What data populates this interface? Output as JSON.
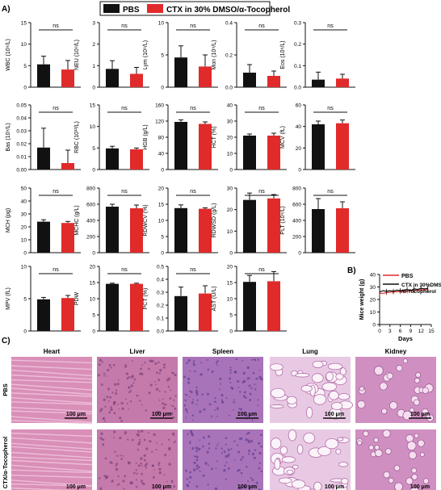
{
  "panels": {
    "a": "A)",
    "b": "B)",
    "c": "C)"
  },
  "legend": {
    "series": [
      "PBS",
      "CTX in 30% DMSO/α-Tocopherol"
    ],
    "colors": [
      "#111111",
      "#e12a2a"
    ]
  },
  "significance": "ns",
  "chart_data": [
    {
      "type": "bar",
      "ylabel": "WBC (10⁹/L)",
      "ylim": [
        0,
        15
      ],
      "ticks": [
        "0",
        "5",
        "10",
        "15"
      ],
      "values": [
        5.3,
        4.1
      ],
      "errors": [
        1.9,
        2.1
      ]
    },
    {
      "type": "bar",
      "ylabel": "NEU (10⁹/L)",
      "ylim": [
        0,
        3
      ],
      "ticks": [
        "0",
        "1",
        "2",
        "3"
      ],
      "values": [
        0.85,
        0.62
      ],
      "errors": [
        0.38,
        0.3
      ]
    },
    {
      "type": "bar",
      "ylabel": "Lym (10⁹/L)",
      "ylim": [
        0,
        10
      ],
      "ticks": [
        "0",
        "5",
        "10"
      ],
      "values": [
        4.6,
        3.2
      ],
      "errors": [
        1.8,
        1.8
      ]
    },
    {
      "type": "bar",
      "ylabel": "Mon (10⁹/L)",
      "ylim": [
        0,
        0.4
      ],
      "ticks": [
        "0.0",
        "0.2",
        "0.4"
      ],
      "values": [
        0.09,
        0.07
      ],
      "errors": [
        0.05,
        0.03
      ]
    },
    {
      "type": "bar",
      "ylabel": "Eos (10⁹/L)",
      "ylim": [
        0,
        0.3
      ],
      "ticks": [
        "0.0",
        "0.1",
        "0.2",
        "0.3"
      ],
      "values": [
        0.035,
        0.04
      ],
      "errors": [
        0.035,
        0.02
      ]
    },
    {
      "type": "bar",
      "ylabel": "Bas (10⁹/L)",
      "ylim": [
        0,
        0.05
      ],
      "ticks": [
        "0.00",
        "0.01",
        "0.02",
        "0.03",
        "0.04",
        "0.05"
      ],
      "values": [
        0.017,
        0.005
      ],
      "errors": [
        0.015,
        0.01
      ]
    },
    {
      "type": "bar",
      "ylabel": "RBC (10¹²/L)",
      "ylim": [
        0,
        15
      ],
      "ticks": [
        "0",
        "5",
        "10",
        "15"
      ],
      "values": [
        4.9,
        4.7
      ],
      "errors": [
        0.5,
        0.3
      ]
    },
    {
      "type": "bar",
      "ylabel": "HGB (g/L)",
      "ylim": [
        0,
        160
      ],
      "ticks": [
        "0",
        "40",
        "80",
        "120",
        "160"
      ],
      "values": [
        118,
        113
      ],
      "errors": [
        5,
        5
      ]
    },
    {
      "type": "bar",
      "ylabel": "HCT (%)",
      "ylim": [
        0,
        40
      ],
      "ticks": [
        "0",
        "10",
        "20",
        "30",
        "40"
      ],
      "values": [
        21,
        21
      ],
      "errors": [
        1,
        1.5
      ]
    },
    {
      "type": "bar",
      "ylabel": "MCV (fL)",
      "ylim": [
        0,
        60
      ],
      "ticks": [
        "0",
        "20",
        "40",
        "60"
      ],
      "values": [
        42,
        43
      ],
      "errors": [
        3,
        3
      ]
    },
    {
      "type": "bar",
      "ylabel": "MCH (pg)",
      "ylim": [
        0,
        50
      ],
      "ticks": [
        "0",
        "10",
        "20",
        "30",
        "40",
        "50"
      ],
      "values": [
        24,
        23
      ],
      "errors": [
        1.5,
        1.2
      ]
    },
    {
      "type": "bar",
      "ylabel": "MCHC (g/L)",
      "ylim": [
        0,
        800
      ],
      "ticks": [
        "0",
        "200",
        "400",
        "600",
        "800"
      ],
      "values": [
        570,
        550
      ],
      "errors": [
        30,
        40
      ]
    },
    {
      "type": "bar",
      "ylabel": "RDWCV (%)",
      "ylim": [
        0,
        20
      ],
      "ticks": [
        "0",
        "5",
        "10",
        "15",
        "20"
      ],
      "values": [
        13.8,
        13.6
      ],
      "errors": [
        1,
        0.3
      ]
    },
    {
      "type": "bar",
      "ylabel": "RDWSD (g/L)",
      "ylim": [
        0,
        30
      ],
      "ticks": [
        "0",
        "10",
        "20",
        "30"
      ],
      "values": [
        24.5,
        25.2
      ],
      "errors": [
        3.2,
        1.8
      ]
    },
    {
      "type": "bar",
      "ylabel": "PLT (10⁹/L)",
      "ylim": [
        0,
        800
      ],
      "ticks": [
        "0",
        "200",
        "400",
        "600",
        "800"
      ],
      "values": [
        540,
        550
      ],
      "errors": [
        130,
        80
      ]
    },
    {
      "type": "bar",
      "ylabel": "MPV (fL)",
      "ylim": [
        0,
        10
      ],
      "ticks": [
        "0",
        "5",
        "10"
      ],
      "values": [
        4.9,
        5.1
      ],
      "errors": [
        0.3,
        0.4
      ]
    },
    {
      "type": "bar",
      "ylabel": "PDW",
      "ylim": [
        0,
        20
      ],
      "ticks": [
        "0",
        "5",
        "10",
        "15",
        "20"
      ],
      "values": [
        14.6,
        14.6
      ],
      "errors": [
        0.2,
        0.2
      ]
    },
    {
      "type": "bar",
      "ylabel": "PCT (%)",
      "ylim": [
        0,
        0.5
      ],
      "ticks": [
        "0.0",
        "0.1",
        "0.2",
        "0.3",
        "0.4",
        "0.5"
      ],
      "values": [
        0.27,
        0.29
      ],
      "errors": [
        0.07,
        0.06
      ]
    },
    {
      "type": "bar",
      "ylabel": "AST (U/L)",
      "ylim": [
        0,
        20
      ],
      "ticks": [
        "0",
        "5",
        "10",
        "15",
        "20"
      ],
      "values": [
        15.2,
        15.4
      ],
      "errors": [
        2,
        3
      ]
    },
    {
      "type": "line",
      "xlabel": "Days",
      "ylabel": "Mice weight (g)",
      "xlim": [
        0,
        15
      ],
      "ylim": [
        0,
        40
      ],
      "xticks": [
        "0",
        "3",
        "6",
        "9",
        "12",
        "15"
      ],
      "yticks": [
        "0",
        "10",
        "20",
        "30",
        "40"
      ],
      "series": [
        {
          "name": "PBS",
          "x": [
            0,
            1,
            2,
            3,
            4,
            5,
            6,
            7,
            8,
            9,
            10,
            11,
            12,
            13,
            14
          ],
          "values": [
            25,
            25,
            25.5,
            25.8,
            26,
            26.2,
            26.4,
            26.5,
            26.7,
            27,
            27.2,
            27.4,
            27.6,
            27.8,
            28
          ]
        },
        {
          "name": "CTX in 30%DMSO /α-Tocopherol",
          "x": [
            0,
            1,
            2,
            3,
            4,
            5,
            6,
            7,
            8,
            9,
            10,
            11,
            12,
            13,
            14
          ],
          "values": [
            26,
            27,
            26.5,
            27,
            26.5,
            27.5,
            27,
            27.5,
            28,
            27,
            28.5,
            28,
            29,
            28.5,
            29
          ]
        }
      ]
    }
  ],
  "histology": {
    "organs": [
      "Heart",
      "Liver",
      "Spleen",
      "Lung",
      "Kidney"
    ],
    "rows": [
      "PBS",
      "CTX/α-Tocopherol"
    ],
    "scale_bar": "100 μm",
    "tissue_colors": {
      "Heart": "#d98fb8",
      "Liver": "#c47aab",
      "Spleen": "#a873b8",
      "Lung": "#e8c9e4",
      "Kidney": "#cf8fc0"
    }
  }
}
